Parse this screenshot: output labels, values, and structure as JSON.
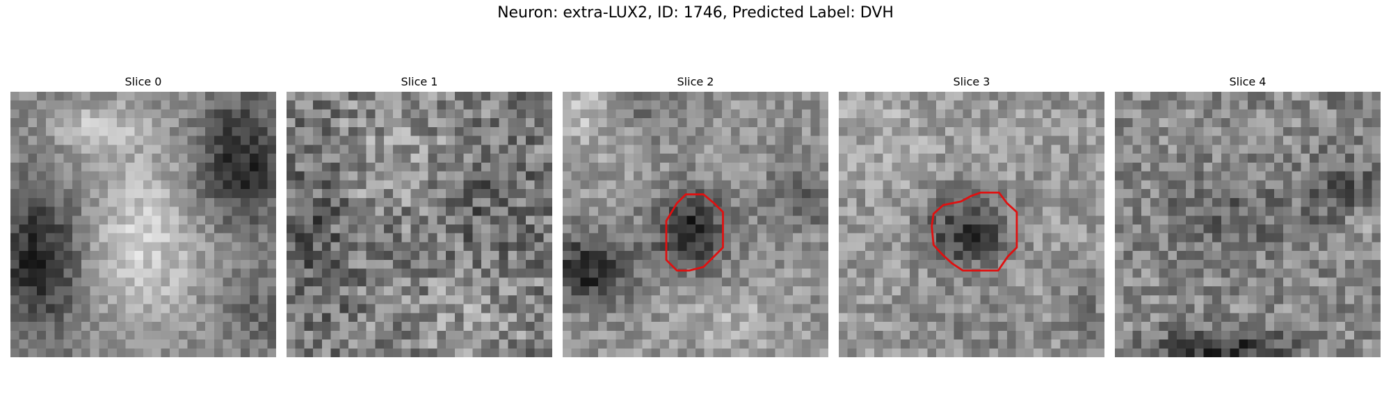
{
  "figure": {
    "title": "Neuron: extra-LUX2, ID: 1746, Predicted Label: DVH"
  },
  "colors": {
    "contour": "#e01010",
    "background": "#ffffff"
  },
  "slices": [
    {
      "label": "Slice 0",
      "image": "grayscale-microscopy-patch",
      "contour": false
    },
    {
      "label": "Slice 1",
      "image": "grayscale-microscopy-patch",
      "contour": false
    },
    {
      "label": "Slice 2",
      "image": "grayscale-microscopy-patch",
      "contour": true
    },
    {
      "label": "Slice 3",
      "image": "grayscale-microscopy-patch",
      "contour": true
    },
    {
      "label": "Slice 4",
      "image": "grayscale-microscopy-patch",
      "contour": false
    }
  ]
}
